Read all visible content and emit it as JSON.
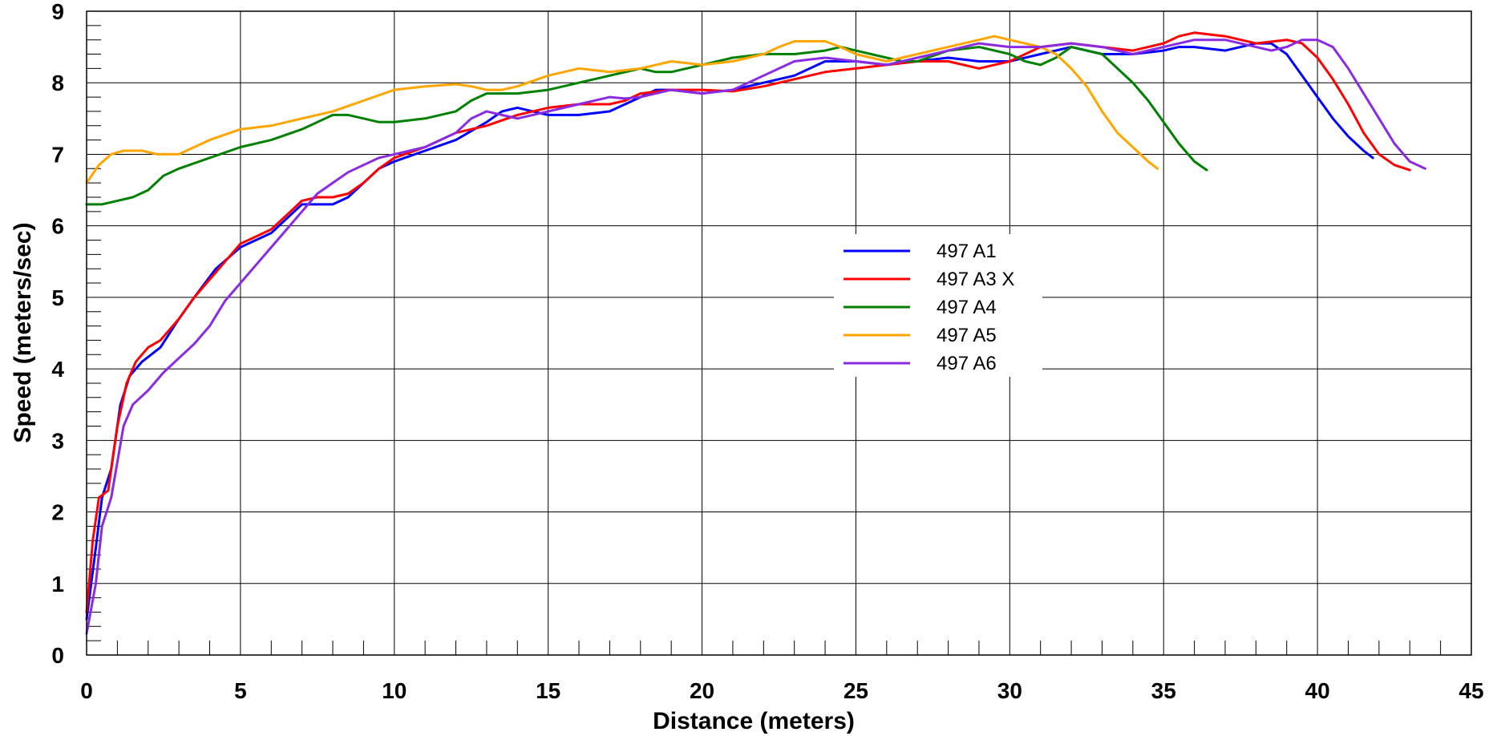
{
  "chart_data": {
    "type": "line",
    "xlabel": "Distance (meters)",
    "ylabel": "Speed (meters/sec)",
    "xlim": [
      0,
      45
    ],
    "ylim": [
      0,
      9
    ],
    "x_ticks": [
      "0",
      "5",
      "10",
      "15",
      "20",
      "25",
      "30",
      "35",
      "40",
      "45"
    ],
    "y_ticks": [
      "0",
      "1",
      "2",
      "3",
      "4",
      "5",
      "6",
      "7",
      "8",
      "9"
    ],
    "grid": true,
    "legend_position": "center",
    "series": [
      {
        "name": "497 A1",
        "color": "#0000ff",
        "points": [
          [
            0,
            0.5
          ],
          [
            0.3,
            1.5
          ],
          [
            0.5,
            2.2
          ],
          [
            0.8,
            2.6
          ],
          [
            1.1,
            3.5
          ],
          [
            1.4,
            3.9
          ],
          [
            1.8,
            4.1
          ],
          [
            2.4,
            4.3
          ],
          [
            3,
            4.7
          ],
          [
            3.5,
            5.0
          ],
          [
            4.2,
            5.4
          ],
          [
            5,
            5.7
          ],
          [
            5.5,
            5.8
          ],
          [
            6,
            5.9
          ],
          [
            6.5,
            6.1
          ],
          [
            7,
            6.3
          ],
          [
            7.5,
            6.3
          ],
          [
            8,
            6.3
          ],
          [
            8.5,
            6.4
          ],
          [
            9,
            6.6
          ],
          [
            9.5,
            6.8
          ],
          [
            10,
            6.9
          ],
          [
            11,
            7.05
          ],
          [
            12,
            7.2
          ],
          [
            13,
            7.45
          ],
          [
            13.5,
            7.6
          ],
          [
            14,
            7.65
          ],
          [
            14.5,
            7.6
          ],
          [
            15,
            7.55
          ],
          [
            16,
            7.55
          ],
          [
            17,
            7.6
          ],
          [
            17.5,
            7.7
          ],
          [
            18,
            7.8
          ],
          [
            18.5,
            7.9
          ],
          [
            19,
            7.9
          ],
          [
            20,
            7.85
          ],
          [
            21,
            7.9
          ],
          [
            22,
            8.0
          ],
          [
            23,
            8.1
          ],
          [
            24,
            8.3
          ],
          [
            25,
            8.3
          ],
          [
            26,
            8.25
          ],
          [
            27,
            8.3
          ],
          [
            28,
            8.35
          ],
          [
            29,
            8.3
          ],
          [
            30,
            8.3
          ],
          [
            31,
            8.4
          ],
          [
            32,
            8.5
          ],
          [
            32.5,
            8.45
          ],
          [
            33,
            8.4
          ],
          [
            34,
            8.4
          ],
          [
            35,
            8.45
          ],
          [
            35.5,
            8.5
          ],
          [
            36,
            8.5
          ],
          [
            37,
            8.45
          ],
          [
            38,
            8.55
          ],
          [
            38.5,
            8.55
          ],
          [
            39,
            8.4
          ],
          [
            39.5,
            8.1
          ],
          [
            40,
            7.8
          ],
          [
            40.5,
            7.5
          ],
          [
            41,
            7.25
          ],
          [
            41.5,
            7.05
          ],
          [
            41.8,
            6.95
          ]
        ]
      },
      {
        "name": "497 A3 X",
        "color": "#ff0000",
        "points": [
          [
            0,
            0.6
          ],
          [
            0.2,
            1.6
          ],
          [
            0.4,
            2.2
          ],
          [
            0.7,
            2.3
          ],
          [
            1.0,
            3.2
          ],
          [
            1.3,
            3.8
          ],
          [
            1.6,
            4.1
          ],
          [
            2,
            4.3
          ],
          [
            2.4,
            4.4
          ],
          [
            3,
            4.7
          ],
          [
            3.5,
            5.0
          ],
          [
            4.2,
            5.35
          ],
          [
            5,
            5.75
          ],
          [
            5.5,
            5.85
          ],
          [
            6,
            5.95
          ],
          [
            6.5,
            6.15
          ],
          [
            7,
            6.35
          ],
          [
            7.5,
            6.4
          ],
          [
            8,
            6.4
          ],
          [
            8.5,
            6.45
          ],
          [
            9,
            6.6
          ],
          [
            9.5,
            6.8
          ],
          [
            10,
            6.95
          ],
          [
            11,
            7.1
          ],
          [
            12,
            7.3
          ],
          [
            13,
            7.4
          ],
          [
            14,
            7.55
          ],
          [
            15,
            7.65
          ],
          [
            16,
            7.7
          ],
          [
            17,
            7.7
          ],
          [
            17.5,
            7.75
          ],
          [
            18,
            7.85
          ],
          [
            19,
            7.9
          ],
          [
            20,
            7.9
          ],
          [
            21,
            7.88
          ],
          [
            22,
            7.95
          ],
          [
            23,
            8.05
          ],
          [
            24,
            8.15
          ],
          [
            25,
            8.2
          ],
          [
            26,
            8.25
          ],
          [
            27,
            8.3
          ],
          [
            28,
            8.3
          ],
          [
            29,
            8.2
          ],
          [
            30,
            8.3
          ],
          [
            31,
            8.5
          ],
          [
            32,
            8.55
          ],
          [
            33,
            8.5
          ],
          [
            34,
            8.45
          ],
          [
            35,
            8.55
          ],
          [
            35.5,
            8.65
          ],
          [
            36,
            8.7
          ],
          [
            37,
            8.65
          ],
          [
            38,
            8.55
          ],
          [
            39,
            8.6
          ],
          [
            39.5,
            8.55
          ],
          [
            40,
            8.35
          ],
          [
            40.5,
            8.05
          ],
          [
            41,
            7.7
          ],
          [
            41.5,
            7.3
          ],
          [
            42,
            7.0
          ],
          [
            42.5,
            6.85
          ],
          [
            43,
            6.78
          ]
        ]
      },
      {
        "name": "497 A4",
        "color": "#008000",
        "points": [
          [
            0,
            6.3
          ],
          [
            0.5,
            6.3
          ],
          [
            1,
            6.35
          ],
          [
            1.5,
            6.4
          ],
          [
            2,
            6.5
          ],
          [
            2.5,
            6.7
          ],
          [
            3,
            6.8
          ],
          [
            4,
            6.95
          ],
          [
            5,
            7.1
          ],
          [
            6,
            7.2
          ],
          [
            7,
            7.35
          ],
          [
            7.5,
            7.45
          ],
          [
            8,
            7.55
          ],
          [
            8.5,
            7.55
          ],
          [
            9,
            7.5
          ],
          [
            9.5,
            7.45
          ],
          [
            10,
            7.45
          ],
          [
            11,
            7.5
          ],
          [
            12,
            7.6
          ],
          [
            12.5,
            7.75
          ],
          [
            13,
            7.85
          ],
          [
            14,
            7.85
          ],
          [
            15,
            7.9
          ],
          [
            16,
            8.0
          ],
          [
            17,
            8.1
          ],
          [
            18,
            8.2
          ],
          [
            18.5,
            8.15
          ],
          [
            19,
            8.15
          ],
          [
            20,
            8.25
          ],
          [
            21,
            8.35
          ],
          [
            22,
            8.4
          ],
          [
            23,
            8.4
          ],
          [
            24,
            8.45
          ],
          [
            24.5,
            8.5
          ],
          [
            25,
            8.45
          ],
          [
            26,
            8.35
          ],
          [
            26.5,
            8.3
          ],
          [
            27,
            8.3
          ],
          [
            28,
            8.45
          ],
          [
            29,
            8.5
          ],
          [
            30,
            8.4
          ],
          [
            30.5,
            8.3
          ],
          [
            31,
            8.25
          ],
          [
            31.5,
            8.35
          ],
          [
            32,
            8.5
          ],
          [
            33,
            8.4
          ],
          [
            33.5,
            8.2
          ],
          [
            34,
            8.0
          ],
          [
            34.5,
            7.75
          ],
          [
            35,
            7.45
          ],
          [
            35.5,
            7.15
          ],
          [
            36,
            6.9
          ],
          [
            36.4,
            6.78
          ]
        ]
      },
      {
        "name": "497 A5",
        "color": "#ffa500",
        "points": [
          [
            0,
            6.6
          ],
          [
            0.4,
            6.85
          ],
          [
            0.8,
            7.0
          ],
          [
            1.2,
            7.05
          ],
          [
            1.8,
            7.05
          ],
          [
            2.3,
            7.0
          ],
          [
            3,
            7.0
          ],
          [
            3.5,
            7.1
          ],
          [
            4,
            7.2
          ],
          [
            5,
            7.35
          ],
          [
            6,
            7.4
          ],
          [
            7,
            7.5
          ],
          [
            8,
            7.6
          ],
          [
            9,
            7.75
          ],
          [
            10,
            7.9
          ],
          [
            11,
            7.95
          ],
          [
            12,
            7.98
          ],
          [
            12.5,
            7.95
          ],
          [
            13,
            7.9
          ],
          [
            13.5,
            7.9
          ],
          [
            14,
            7.95
          ],
          [
            15,
            8.1
          ],
          [
            16,
            8.2
          ],
          [
            17,
            8.15
          ],
          [
            18,
            8.2
          ],
          [
            19,
            8.3
          ],
          [
            20,
            8.25
          ],
          [
            21,
            8.3
          ],
          [
            22,
            8.4
          ],
          [
            22.5,
            8.5
          ],
          [
            23,
            8.58
          ],
          [
            24,
            8.58
          ],
          [
            24.5,
            8.5
          ],
          [
            25,
            8.4
          ],
          [
            26,
            8.3
          ],
          [
            27,
            8.4
          ],
          [
            28,
            8.5
          ],
          [
            29,
            8.6
          ],
          [
            29.5,
            8.65
          ],
          [
            30,
            8.6
          ],
          [
            31,
            8.5
          ],
          [
            31.5,
            8.4
          ],
          [
            32,
            8.2
          ],
          [
            32.5,
            7.95
          ],
          [
            33,
            7.6
          ],
          [
            33.5,
            7.3
          ],
          [
            34,
            7.1
          ],
          [
            34.5,
            6.9
          ],
          [
            34.8,
            6.8
          ]
        ]
      },
      {
        "name": "497 A6",
        "color": "#8a2be2",
        "points": [
          [
            0,
            0.3
          ],
          [
            0.3,
            1.0
          ],
          [
            0.5,
            1.8
          ],
          [
            0.8,
            2.2
          ],
          [
            1.0,
            2.7
          ],
          [
            1.2,
            3.2
          ],
          [
            1.5,
            3.5
          ],
          [
            2,
            3.7
          ],
          [
            2.5,
            3.95
          ],
          [
            3,
            4.15
          ],
          [
            3.5,
            4.35
          ],
          [
            4,
            4.6
          ],
          [
            4.5,
            4.95
          ],
          [
            5,
            5.2
          ],
          [
            5.5,
            5.45
          ],
          [
            6,
            5.7
          ],
          [
            6.5,
            5.95
          ],
          [
            7,
            6.2
          ],
          [
            7.5,
            6.45
          ],
          [
            8,
            6.6
          ],
          [
            8.5,
            6.75
          ],
          [
            9,
            6.85
          ],
          [
            9.5,
            6.95
          ],
          [
            10,
            7.0
          ],
          [
            11,
            7.1
          ],
          [
            12,
            7.3
          ],
          [
            12.5,
            7.5
          ],
          [
            13,
            7.6
          ],
          [
            13.5,
            7.55
          ],
          [
            14,
            7.5
          ],
          [
            14.5,
            7.55
          ],
          [
            15,
            7.6
          ],
          [
            16,
            7.7
          ],
          [
            17,
            7.8
          ],
          [
            17.5,
            7.78
          ],
          [
            18,
            7.8
          ],
          [
            19,
            7.9
          ],
          [
            20,
            7.85
          ],
          [
            21,
            7.9
          ],
          [
            22,
            8.1
          ],
          [
            23,
            8.3
          ],
          [
            24,
            8.35
          ],
          [
            25,
            8.3
          ],
          [
            26,
            8.25
          ],
          [
            27,
            8.35
          ],
          [
            28,
            8.45
          ],
          [
            29,
            8.55
          ],
          [
            30,
            8.5
          ],
          [
            31,
            8.5
          ],
          [
            32,
            8.55
          ],
          [
            33,
            8.5
          ],
          [
            34,
            8.4
          ],
          [
            35,
            8.5
          ],
          [
            36,
            8.6
          ],
          [
            37,
            8.6
          ],
          [
            38,
            8.5
          ],
          [
            38.5,
            8.45
          ],
          [
            39,
            8.5
          ],
          [
            39.5,
            8.6
          ],
          [
            40,
            8.6
          ],
          [
            40.5,
            8.5
          ],
          [
            41,
            8.2
          ],
          [
            41.5,
            7.85
          ],
          [
            42,
            7.5
          ],
          [
            42.5,
            7.15
          ],
          [
            43,
            6.9
          ],
          [
            43.5,
            6.8
          ]
        ]
      }
    ]
  }
}
